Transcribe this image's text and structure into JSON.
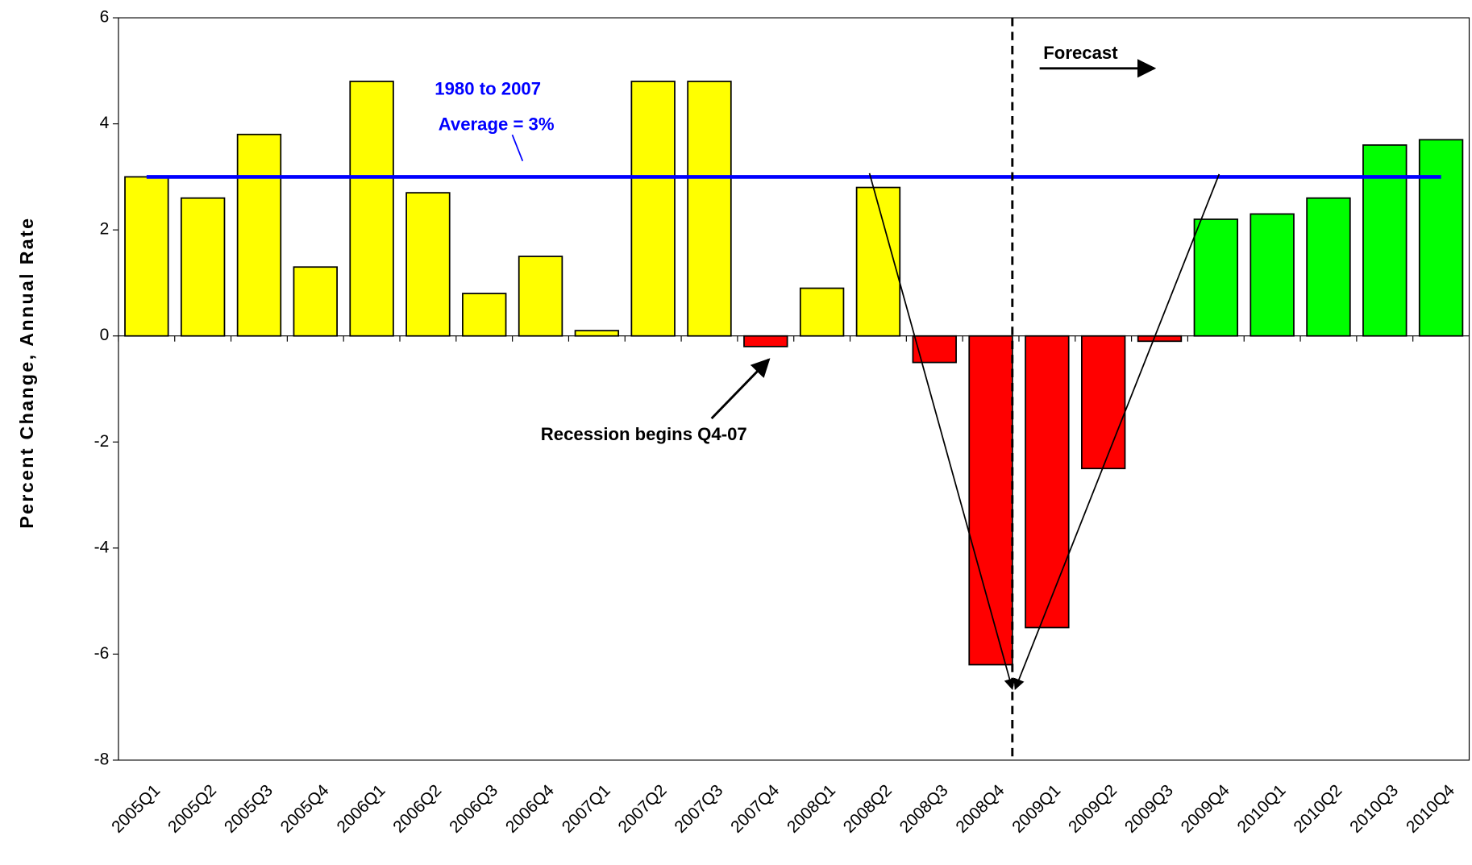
{
  "chart_data": {
    "type": "bar",
    "y_axis_label": "Percent Change, Annual Rate",
    "categories": [
      "2005Q1",
      "2005Q2",
      "2005Q3",
      "2005Q4",
      "2006Q1",
      "2006Q2",
      "2006Q3",
      "2006Q4",
      "2007Q1",
      "2007Q2",
      "2007Q3",
      "2007Q4",
      "2008Q1",
      "2008Q2",
      "2008Q3",
      "2008Q4",
      "2009Q1",
      "2009Q2",
      "2009Q3",
      "2009Q4",
      "2010Q1",
      "2010Q2",
      "2010Q3",
      "2010Q4"
    ],
    "values": [
      3.0,
      2.6,
      3.8,
      1.3,
      4.8,
      2.7,
      0.8,
      1.5,
      0.1,
      4.8,
      4.8,
      -0.2,
      0.9,
      2.8,
      -0.5,
      -6.2,
      -5.5,
      -2.5,
      -0.1,
      2.2,
      2.3,
      2.6,
      3.6,
      3.7
    ],
    "colors": [
      "#ffff00",
      "#ffff00",
      "#ffff00",
      "#ffff00",
      "#ffff00",
      "#ffff00",
      "#ffff00",
      "#ffff00",
      "#ffff00",
      "#ffff00",
      "#ffff00",
      "#ff0000",
      "#ffff00",
      "#ffff00",
      "#ff0000",
      "#ff0000",
      "#ff0000",
      "#ff0000",
      "#ff0000",
      "#00ff00",
      "#00ff00",
      "#00ff00",
      "#00ff00",
      "#00ff00"
    ],
    "average": {
      "value": 3,
      "color": "#0000ff",
      "label_lines": [
        "1980 to 2007",
        "Average = 3%"
      ]
    },
    "annotations": [
      "Forecast",
      "Recession begins Q4-07"
    ],
    "ylim": [
      -8,
      6
    ],
    "yticks": [
      -8,
      -6,
      -4,
      -2,
      0,
      2,
      4,
      6
    ]
  }
}
